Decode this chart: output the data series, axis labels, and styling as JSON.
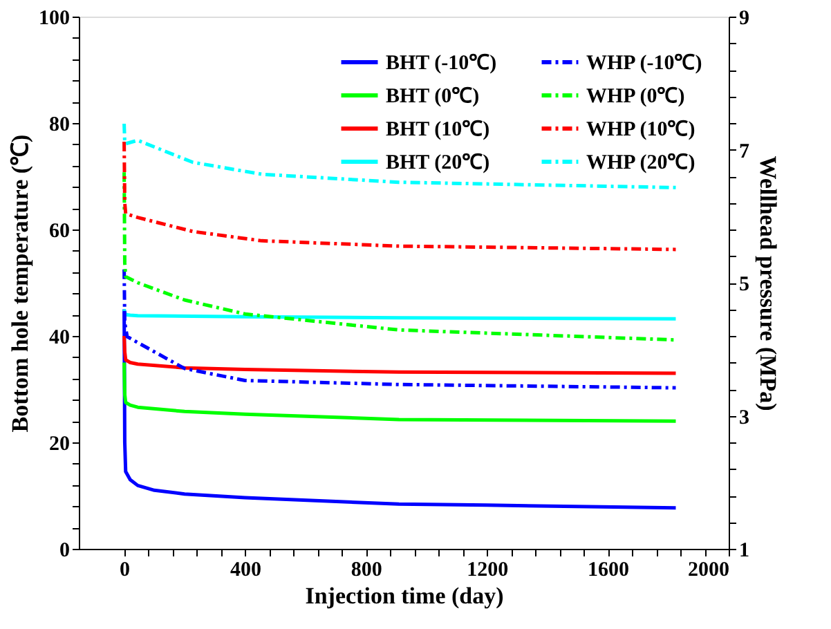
{
  "chart_data": {
    "type": "line",
    "xlabel": "Injection time (day)",
    "ylabel": "Bottom hole temperature (℃)",
    "y2label": "Wellhead pressure (MPa)",
    "xlim": [
      -150,
      2000
    ],
    "xticks": [
      0,
      {
        "value": 80,
        "label": null
      },
      {
        "value": 160,
        "label": null
      },
      {
        "value": 240,
        "label": null
      },
      {
        "value": 320,
        "label": null
      },
      400,
      {
        "value": 480,
        "label": null
      },
      {
        "value": 560,
        "label": null
      },
      {
        "value": 640,
        "label": null
      },
      {
        "value": 720,
        "label": null
      },
      800,
      {
        "value": 880,
        "label": null
      },
      {
        "value": 960,
        "label": null
      },
      {
        "value": 1040,
        "label": null
      },
      {
        "value": 1120,
        "label": null
      },
      1200,
      {
        "value": 1280,
        "label": null
      },
      {
        "value": 1360,
        "label": null
      },
      {
        "value": 1440,
        "label": null
      },
      {
        "value": 1520,
        "label": null
      },
      1600,
      {
        "value": 1680,
        "label": null
      },
      {
        "value": 1760,
        "label": null
      },
      {
        "value": 1840,
        "label": null
      },
      {
        "value": 1920,
        "label": null
      },
      2000
    ],
    "ylim": [
      0,
      100
    ],
    "yticks": [
      0,
      {
        "value": 4,
        "label": null
      },
      {
        "value": 8,
        "label": null
      },
      {
        "value": 12,
        "label": null
      },
      {
        "value": 16,
        "label": null
      },
      20,
      {
        "value": 24,
        "label": null
      },
      {
        "value": 28,
        "label": null
      },
      {
        "value": 32,
        "label": null
      },
      {
        "value": 36,
        "label": null
      },
      40,
      {
        "value": 44,
        "label": null
      },
      {
        "value": 48,
        "label": null
      },
      {
        "value": 52,
        "label": null
      },
      {
        "value": 56,
        "label": null
      },
      60,
      {
        "value": 64,
        "label": null
      },
      {
        "value": 68,
        "label": null
      },
      {
        "value": 72,
        "label": null
      },
      {
        "value": 76,
        "label": null
      },
      80,
      {
        "value": 84,
        "label": null
      },
      {
        "value": 88,
        "label": null
      },
      {
        "value": 92,
        "label": null
      },
      {
        "value": 96,
        "label": null
      },
      100
    ],
    "y2lim": [
      1,
      9
    ],
    "y2ticks": [
      1,
      {
        "value": 1.4,
        "label": null
      },
      {
        "value": 1.8,
        "label": null
      },
      {
        "value": 2.2,
        "label": null
      },
      {
        "value": 2.6,
        "label": null
      },
      3,
      {
        "value": 3.4,
        "label": null
      },
      {
        "value": 3.8,
        "label": null
      },
      {
        "value": 4.2,
        "label": null
      },
      {
        "value": 4.6,
        "label": null
      },
      5,
      {
        "value": 5.4,
        "label": null
      },
      {
        "value": 5.8,
        "label": null
      },
      {
        "value": 6.2,
        "label": null
      },
      {
        "value": 6.6,
        "label": null
      },
      7,
      {
        "value": 7.4,
        "label": null
      },
      {
        "value": 7.8,
        "label": null
      },
      {
        "value": 8.2,
        "label": null
      },
      {
        "value": 8.6,
        "label": null
      },
      9
    ],
    "legend": "top right",
    "grid": false,
    "marker": "none",
    "series": [
      {
        "name": "BHT (-10℃)",
        "color": "#0000ff",
        "axis": "y",
        "line_style": "solid",
        "x": [
          0,
          2,
          5,
          20,
          45,
          100,
          200,
          400,
          909,
          1200,
          1825
        ],
        "values": [
          45,
          20,
          14.5,
          13,
          11.9,
          11,
          10.3,
          9.6,
          8.4,
          8.2,
          7.7
        ]
      },
      {
        "name": "BHT (0℃)",
        "color": "#00ff00",
        "axis": "y",
        "line_style": "solid",
        "x": [
          0,
          2,
          5,
          20,
          45,
          200,
          400,
          909,
          1825
        ],
        "values": [
          35,
          29,
          27.5,
          27,
          26.6,
          25.8,
          25.3,
          24.3,
          24
        ]
      },
      {
        "name": "BHT (10℃)",
        "color": "#ff0000",
        "axis": "y",
        "line_style": "solid",
        "x": [
          0,
          2,
          5,
          20,
          45,
          200,
          400,
          909,
          1825
        ],
        "values": [
          40,
          37,
          35.5,
          35,
          34.7,
          34,
          33.7,
          33.2,
          33
        ]
      },
      {
        "name": "BHT (20℃)",
        "color": "#00ffff",
        "axis": "y",
        "line_style": "solid",
        "x": [
          0,
          2,
          5,
          20,
          45,
          400,
          909,
          1825
        ],
        "values": [
          45,
          44.5,
          44,
          43.9,
          43.8,
          43.6,
          43.4,
          43.2
        ]
      },
      {
        "name": "WHP (-10℃)",
        "color": "#0000ff",
        "axis": "y2",
        "line_style": "dashed",
        "x": [
          0,
          2,
          10,
          45,
          200,
          400,
          909,
          1825
        ],
        "values": [
          5.2,
          4.4,
          4.19,
          4.1,
          3.71,
          3.53,
          3.47,
          3.42
        ]
      },
      {
        "name": "WHP (0℃)",
        "color": "#00ff00",
        "axis": "y2",
        "line_style": "dashed",
        "x": [
          0,
          2,
          5,
          45,
          200,
          400,
          909,
          1825
        ],
        "values": [
          6.66,
          5.3,
          5.09,
          5.0,
          4.74,
          4.53,
          4.29,
          4.14
        ]
      },
      {
        "name": "WHP (10℃)",
        "color": "#ff0000",
        "axis": "y2",
        "line_style": "dashed",
        "x": [
          0,
          2,
          5,
          45,
          227,
          455,
          909,
          1825
        ],
        "values": [
          7.12,
          6.2,
          6.04,
          5.98,
          5.77,
          5.63,
          5.55,
          5.5
        ]
      },
      {
        "name": "WHP (20℃)",
        "color": "#00ffff",
        "axis": "y2",
        "line_style": "dashed",
        "x": [
          0,
          2,
          5,
          45,
          227,
          455,
          909,
          1825
        ],
        "values": [
          7.39,
          7.1,
          7.09,
          7.14,
          6.81,
          6.63,
          6.51,
          6.43
        ]
      }
    ]
  }
}
